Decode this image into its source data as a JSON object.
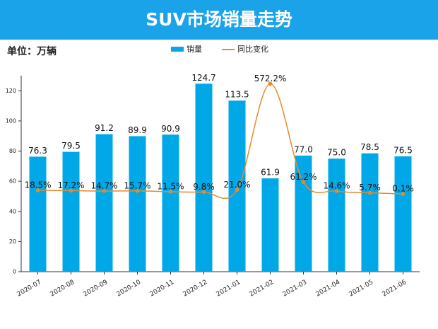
{
  "chart_data": {
    "type": "bar_line",
    "title": "SUV市场销量走势",
    "unit_label": "单位：万辆",
    "categories": [
      "2020-07",
      "2020-08",
      "2020-09",
      "2020-10",
      "2020-11",
      "2020-12",
      "2021-01",
      "2021-02",
      "2021-03",
      "2021-04",
      "2021-05",
      "2021-06"
    ],
    "series": [
      {
        "name": "销量",
        "color": "#00a8e8",
        "type": "bar",
        "values": [
          76.3,
          79.5,
          91.2,
          89.9,
          90.9,
          124.7,
          113.5,
          61.9,
          77.0,
          75.0,
          78.5,
          76.5
        ],
        "value_labels": [
          "76.3",
          "79.5",
          "91.2",
          "89.9",
          "90.9",
          "124.7",
          "113.5",
          "61.9",
          "77.0",
          "75.0",
          "78.5",
          "76.5"
        ]
      },
      {
        "name": "同比变化",
        "color": "#e8892a",
        "type": "line",
        "axis": "y2",
        "values": [
          18.5,
          17.2,
          14.7,
          15.7,
          11.5,
          9.8,
          21.0,
          572.2,
          61.2,
          14.6,
          5.7,
          0.1
        ],
        "value_labels": [
          "18.5%",
          "17.2%",
          "14.7%",
          "15.7%",
          "11.5%",
          "9.8%",
          "21.0%",
          "572.2%",
          "61.2%",
          "14.6%",
          "5.7%",
          "0.1%"
        ]
      }
    ],
    "ylim": [
      0,
      130
    ],
    "yticks": [
      0,
      20,
      40,
      60,
      80,
      100,
      120
    ],
    "y2lim": [
      -404,
      614
    ],
    "grid": false
  }
}
